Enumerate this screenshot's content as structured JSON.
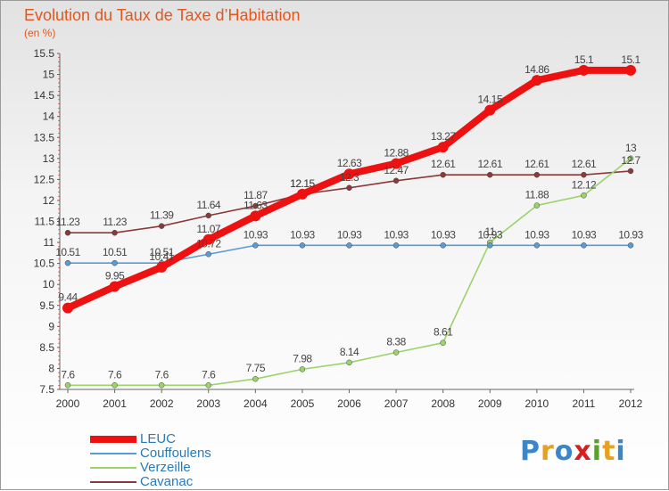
{
  "title": "Evolution du Taux de Taxe d’Habitation",
  "subtitle": "(en %)",
  "brand": {
    "letters": [
      "P",
      "r",
      "o",
      "x",
      "i",
      "t",
      "i"
    ],
    "colors": [
      "#3a86c8",
      "#e8a020",
      "#3a86c8",
      "#d42020",
      "#5aa02c",
      "#e8a020",
      "#3a86c8"
    ]
  },
  "chart_data": {
    "type": "line",
    "x": [
      "2000",
      "2001",
      "2002",
      "2003",
      "2004",
      "2005",
      "2006",
      "2007",
      "2008",
      "2009",
      "2010",
      "2011",
      "2012"
    ],
    "yticks": [
      "7.5",
      "8",
      "8.5",
      "9",
      "9.5",
      "10",
      "10.5",
      "11",
      "11.5",
      "12",
      "12.5",
      "13",
      "13.5",
      "14",
      "14.5",
      "15",
      "15.5"
    ],
    "ylim": [
      7.5,
      15.5
    ],
    "grid": false,
    "legend_position": "bottom-left",
    "series": [
      {
        "name": "LEUC",
        "color": "#ee1111",
        "values": [
          9.44,
          9.95,
          10.41,
          11.07,
          11.63,
          12.15,
          12.63,
          12.88,
          13.27,
          14.15,
          14.86,
          15.1,
          15.1
        ],
        "labels": [
          "9.44",
          "9.95",
          "10.41",
          "11.07",
          "11.63",
          "12.15",
          "12.63",
          "12.88",
          "13.27",
          "14.15",
          "14.86",
          "15.1",
          "15.1"
        ]
      },
      {
        "name": "Couffoulens",
        "color": "#5b9bd5",
        "values": [
          10.51,
          10.51,
          10.51,
          10.72,
          10.93,
          10.93,
          10.93,
          10.93,
          10.93,
          10.93,
          10.93,
          10.93,
          10.93
        ],
        "labels": [
          "10.51",
          "10.51",
          "10.51",
          "10.72",
          "10.93",
          "10.93",
          "10.93",
          "10.93",
          "10.93",
          "10.93",
          "10.93",
          "10.93",
          "10.93"
        ]
      },
      {
        "name": "Verzeille",
        "color": "#9bd36b",
        "values": [
          7.6,
          7.6,
          7.6,
          7.6,
          7.75,
          7.98,
          8.14,
          8.38,
          8.61,
          11.0,
          11.88,
          12.12,
          13.0
        ],
        "labels": [
          "7.6",
          "7.6",
          "7.6",
          "7.6",
          "7.75",
          "7.98",
          "8.14",
          "8.38",
          "8.61",
          "11",
          "11.88",
          "12.12",
          "13"
        ]
      },
      {
        "name": "Cavanac",
        "color": "#8b3a3a",
        "values": [
          11.23,
          11.23,
          11.39,
          11.64,
          11.87,
          12.15,
          12.3,
          12.47,
          12.61,
          12.61,
          12.61,
          12.61,
          12.7
        ],
        "labels": [
          "11.23",
          "11.23",
          "11.39",
          "11.64",
          "11.87",
          "12.15",
          "12.3",
          "12.47",
          "12.61",
          "12.61",
          "12.61",
          "12.61",
          "12.7"
        ]
      }
    ]
  }
}
